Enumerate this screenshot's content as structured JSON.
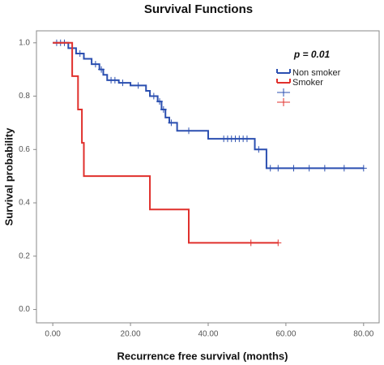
{
  "chart_data": {
    "type": "kaplan-meier",
    "title": "Survival Functions",
    "x_label": "Recurrence free survival (months)",
    "y_label": "Survival probability",
    "annotation": "p = 0.01",
    "xlim": [
      -4.2,
      84
    ],
    "ylim": [
      -0.05,
      1.045
    ],
    "xticks": [
      {
        "value": 0,
        "label": "0.00"
      },
      {
        "value": 20,
        "label": "20.00"
      },
      {
        "value": 40,
        "label": "40.00"
      },
      {
        "value": 60,
        "label": "60.00"
      },
      {
        "value": 80,
        "label": "80.00"
      }
    ],
    "yticks": [
      {
        "value": 0,
        "label": "0.0"
      },
      {
        "value": 0.2,
        "label": "0.2"
      },
      {
        "value": 0.4,
        "label": "0.4"
      },
      {
        "value": 0.6,
        "label": "0.6"
      },
      {
        "value": 0.8,
        "label": "0.8"
      },
      {
        "value": 1,
        "label": "1.0"
      }
    ],
    "series": [
      {
        "name": "Non smoker",
        "color": "#2b4fb0",
        "time": [
          0,
          4,
          6,
          8,
          10,
          12,
          13,
          14,
          17,
          20,
          24,
          25,
          27,
          28,
          29,
          30,
          32,
          40,
          52,
          55,
          80
        ],
        "survival": [
          1,
          0.98,
          0.96,
          0.94,
          0.92,
          0.9,
          0.88,
          0.86,
          0.85,
          0.84,
          0.82,
          0.8,
          0.78,
          0.75,
          0.72,
          0.7,
          0.67,
          0.64,
          0.6,
          0.53,
          0.53
        ],
        "censor_time": [
          1,
          2,
          3,
          7,
          11,
          12.5,
          15,
          16,
          18,
          22,
          26,
          27.5,
          28.5,
          30.5,
          35,
          44,
          45,
          46,
          47,
          48,
          49,
          50,
          53,
          56,
          58,
          62,
          66,
          70,
          75,
          80
        ],
        "censor_survival": [
          1,
          1,
          1,
          0.96,
          0.92,
          0.9,
          0.86,
          0.86,
          0.85,
          0.84,
          0.8,
          0.78,
          0.75,
          0.7,
          0.67,
          0.64,
          0.64,
          0.64,
          0.64,
          0.64,
          0.64,
          0.64,
          0.6,
          0.53,
          0.53,
          0.53,
          0.53,
          0.53,
          0.53,
          0.53
        ]
      },
      {
        "name": "Smoker",
        "color": "#e0302c",
        "time": [
          0,
          5,
          6.5,
          7.5,
          8,
          25,
          35,
          58
        ],
        "survival": [
          1,
          0.875,
          0.75,
          0.625,
          0.5,
          0.375,
          0.25,
          0.25
        ],
        "censor_time": [
          51,
          58
        ],
        "censor_survival": [
          0.25,
          0.25
        ]
      }
    ]
  }
}
